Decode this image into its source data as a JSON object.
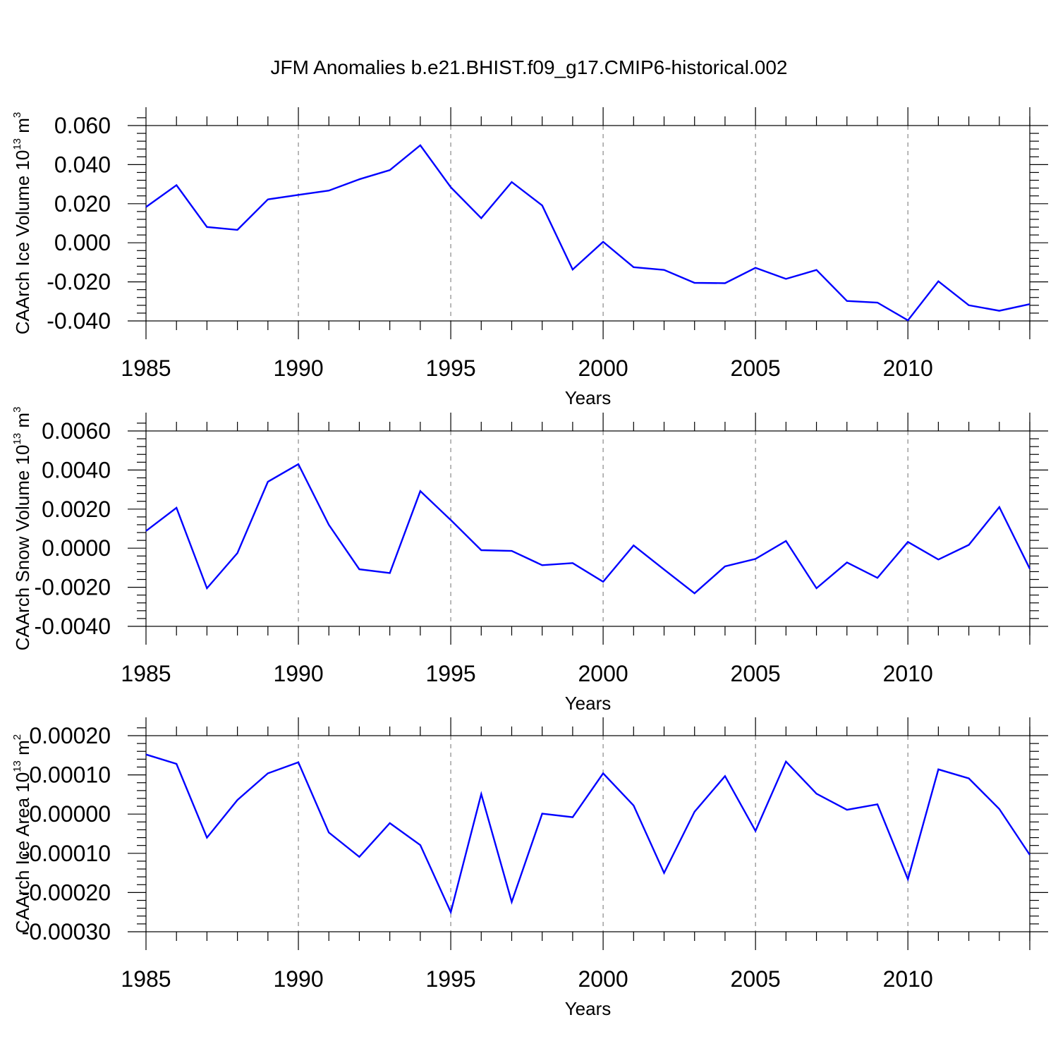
{
  "figure_title": "JFM Anomalies b.e21.BHIST.f09_g17.CMIP6-historical.002",
  "colors": {
    "line": "#0000ff",
    "axis": "#000000",
    "grid": "#888888"
  },
  "chart_data": [
    {
      "type": "line",
      "ylabel": {
        "main": "CAArch Ice Volume 10",
        "sup_exp": "13",
        "unit": " m",
        "sup_unit": "3"
      },
      "xlabel": "Years",
      "xlim": [
        1985,
        2014
      ],
      "ylim": [
        -0.04,
        0.07
      ],
      "x_ticks": [
        1985,
        1990,
        1995,
        2000,
        2005,
        2010
      ],
      "x_tick_labels": [
        "1985",
        "1990",
        "1995",
        "2000",
        "2005",
        "2010"
      ],
      "y_ticks": [
        -0.04,
        -0.02,
        0.0,
        0.02,
        0.04,
        0.06
      ],
      "y_tick_labels": [
        "-0.040",
        "-0.020",
        "0.000",
        "0.020",
        "0.040",
        "0.060"
      ],
      "x": [
        1985,
        1986,
        1987,
        1988,
        1989,
        1990,
        1991,
        1992,
        1993,
        1994,
        1995,
        1996,
        1997,
        1998,
        1999,
        2000,
        2001,
        2002,
        2003,
        2004,
        2005,
        2006,
        2007,
        2008,
        2009,
        2010,
        2011,
        2012,
        2013,
        2014
      ],
      "values": [
        0.0183,
        0.0295,
        0.0081,
        0.0066,
        0.0222,
        0.0245,
        0.0267,
        0.0325,
        0.0372,
        0.0499,
        0.0284,
        0.0126,
        0.0311,
        0.0191,
        -0.0137,
        0.0005,
        -0.0125,
        -0.0139,
        -0.0205,
        -0.0207,
        -0.0128,
        -0.0185,
        -0.0139,
        -0.0298,
        -0.0306,
        -0.0397,
        -0.0197,
        -0.032,
        -0.0348,
        -0.0314
      ]
    },
    {
      "type": "line",
      "ylabel": {
        "main": "CAArch Snow Volume 10",
        "sup_exp": "13",
        "unit": " m",
        "sup_unit": "3"
      },
      "xlabel": "Years",
      "xlim": [
        1985,
        2014
      ],
      "ylim": [
        -0.004,
        0.007
      ],
      "x_ticks": [
        1985,
        1990,
        1995,
        2000,
        2005,
        2010
      ],
      "x_tick_labels": [
        "1985",
        "1990",
        "1995",
        "2000",
        "2005",
        "2010"
      ],
      "y_ticks": [
        -0.004,
        -0.002,
        0.0,
        0.002,
        0.004,
        0.006
      ],
      "y_tick_labels": [
        "-0.0040",
        "-0.0020",
        "0.0000",
        "0.0020",
        "0.0040",
        "0.0060"
      ],
      "x": [
        1985,
        1986,
        1987,
        1988,
        1989,
        1990,
        1991,
        1992,
        1993,
        1994,
        1995,
        1996,
        1997,
        1998,
        1999,
        2000,
        2001,
        2002,
        2003,
        2004,
        2005,
        2006,
        2007,
        2008,
        2009,
        2010,
        2011,
        2012,
        2013,
        2014
      ],
      "values": [
        0.00088,
        0.00207,
        -0.00205,
        -0.00025,
        0.0034,
        0.0043,
        0.0012,
        -0.00108,
        -0.00127,
        0.00292,
        0.00144,
        -0.0001,
        -0.00014,
        -0.00087,
        -0.00076,
        -0.00172,
        0.00014,
        -0.00109,
        -0.00231,
        -0.00093,
        -0.00055,
        0.00037,
        -0.00205,
        -0.00073,
        -0.00152,
        0.00032,
        -0.00058,
        0.00017,
        0.0021,
        -0.00105
      ]
    },
    {
      "type": "line",
      "ylabel": {
        "main": "CAArch Ice Area 10",
        "sup_exp": "13",
        "unit": " m",
        "sup_unit": "2"
      },
      "xlabel": "Years",
      "xlim": [
        1985,
        2014
      ],
      "ylim": [
        -0.0003,
        0.00025
      ],
      "x_ticks": [
        1985,
        1990,
        1995,
        2000,
        2005,
        2010
      ],
      "x_tick_labels": [
        "1985",
        "1990",
        "1995",
        "2000",
        "2005",
        "2010"
      ],
      "y_ticks": [
        -0.0003,
        -0.0002,
        -0.0001,
        0.0,
        0.0001,
        0.0002
      ],
      "y_tick_labels": [
        "-0.00030",
        "-0.00020",
        "-0.00010",
        "0.00000",
        "0.00010",
        "0.00020"
      ],
      "x": [
        1985,
        1986,
        1987,
        1988,
        1989,
        1990,
        1991,
        1992,
        1993,
        1994,
        1995,
        1996,
        1997,
        1998,
        1999,
        2000,
        2001,
        2002,
        2003,
        2004,
        2005,
        2006,
        2007,
        2008,
        2009,
        2010,
        2011,
        2012,
        2013,
        2014
      ],
      "values": [
        0.000152,
        0.000128,
        -6e-05,
        3.6e-05,
        0.000104,
        0.000132,
        -4.7e-05,
        -0.000109,
        -2.3e-05,
        -7.9e-05,
        -0.00025,
        5.1e-05,
        -0.000224,
        1e-06,
        -8e-06,
        0.000104,
        2.2e-05,
        -0.00015,
        6e-06,
        9.7e-05,
        -4.3e-05,
        0.000134,
        5.2e-05,
        1.1e-05,
        2.5e-05,
        -0.000166,
        0.000114,
        9.1e-05,
        1.3e-05,
        -0.000104
      ]
    }
  ]
}
